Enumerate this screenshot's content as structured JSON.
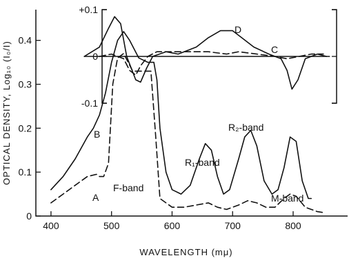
{
  "chart_data": [
    {
      "type": "line",
      "xlabel": "WAVELENGTH (mμ)",
      "ylabel": "OPTICAL DENSITY, Log₁₀ (I₀/I)",
      "xlim": [
        375,
        890
      ],
      "ylim": [
        0,
        0.47
      ],
      "x_ticks": [
        "400",
        "500",
        "600",
        "700",
        "800"
      ],
      "y_ticks": [
        "0",
        "0.1",
        "0.2",
        "0.3",
        "0.4"
      ],
      "series": [
        {
          "label": "B",
          "style": "solid",
          "points": [
            [
              400,
              0.06
            ],
            [
              420,
              0.09
            ],
            [
              440,
              0.13
            ],
            [
              460,
              0.18
            ],
            [
              470,
              0.2
            ],
            [
              480,
              0.23
            ],
            [
              490,
              0.28
            ],
            [
              500,
              0.35
            ],
            [
              510,
              0.4
            ],
            [
              520,
              0.42
            ],
            [
              530,
              0.4
            ],
            [
              545,
              0.36
            ],
            [
              560,
              0.35
            ],
            [
              570,
              0.35
            ],
            [
              575,
              0.31
            ],
            [
              580,
              0.2
            ],
            [
              590,
              0.1
            ],
            [
              600,
              0.06
            ],
            [
              615,
              0.05
            ],
            [
              630,
              0.07
            ],
            [
              645,
              0.13
            ],
            [
              655,
              0.165
            ],
            [
              665,
              0.15
            ],
            [
              675,
              0.09
            ],
            [
              685,
              0.05
            ],
            [
              695,
              0.06
            ],
            [
              710,
              0.13
            ],
            [
              720,
              0.18
            ],
            [
              730,
              0.195
            ],
            [
              740,
              0.16
            ],
            [
              752,
              0.08
            ],
            [
              765,
              0.05
            ],
            [
              775,
              0.06
            ],
            [
              785,
              0.11
            ],
            [
              795,
              0.18
            ],
            [
              805,
              0.17
            ],
            [
              815,
              0.08
            ],
            [
              825,
              0.04
            ],
            [
              830,
              0.04
            ]
          ]
        },
        {
          "label": "A",
          "style": "dashed",
          "points": [
            [
              400,
              0.03
            ],
            [
              420,
              0.05
            ],
            [
              440,
              0.07
            ],
            [
              460,
              0.09
            ],
            [
              475,
              0.095
            ],
            [
              480,
              0.09
            ],
            [
              487,
              0.09
            ],
            [
              495,
              0.12
            ],
            [
              502,
              0.3
            ],
            [
              510,
              0.36
            ],
            [
              520,
              0.37
            ],
            [
              535,
              0.33
            ],
            [
              550,
              0.33
            ],
            [
              565,
              0.33
            ],
            [
              573,
              0.18
            ],
            [
              580,
              0.04
            ],
            [
              600,
              0.02
            ],
            [
              620,
              0.02
            ],
            [
              640,
              0.025
            ],
            [
              660,
              0.03
            ],
            [
              675,
              0.02
            ],
            [
              690,
              0.015
            ],
            [
              710,
              0.025
            ],
            [
              725,
              0.035
            ],
            [
              740,
              0.03
            ],
            [
              755,
              0.02
            ],
            [
              770,
              0.02
            ],
            [
              785,
              0.04
            ],
            [
              795,
              0.05
            ],
            [
              805,
              0.045
            ],
            [
              820,
              0.02
            ],
            [
              840,
              0.01
            ],
            [
              850,
              0.008
            ]
          ]
        }
      ],
      "annotations": {
        "B": "B",
        "A": "A",
        "f_band": "F-band",
        "r1_band": "R₁-band",
        "r2_band": "R₂-band",
        "m_band": "M-band"
      }
    },
    {
      "type": "line",
      "inset": true,
      "ylim": [
        -0.1,
        0.1
      ],
      "y_ticks": [
        "+0.1",
        "0",
        "-0.1"
      ],
      "series": [
        {
          "label": "D",
          "style": "solid",
          "points": [
            [
              455,
              0.0
            ],
            [
              480,
              0.02
            ],
            [
              495,
              0.06
            ],
            [
              505,
              0.085
            ],
            [
              515,
              0.07
            ],
            [
              525,
              0.0
            ],
            [
              540,
              -0.05
            ],
            [
              548,
              -0.055
            ],
            [
              558,
              -0.025
            ],
            [
              568,
              0.0
            ],
            [
              590,
              0.01
            ],
            [
              610,
              0.005
            ],
            [
              640,
              0.02
            ],
            [
              660,
              0.04
            ],
            [
              680,
              0.055
            ],
            [
              700,
              0.055
            ],
            [
              715,
              0.04
            ],
            [
              735,
              0.02
            ],
            [
              760,
              0.005
            ],
            [
              780,
              -0.005
            ],
            [
              790,
              -0.03
            ],
            [
              798,
              -0.07
            ],
            [
              808,
              -0.05
            ],
            [
              820,
              -0.005
            ],
            [
              840,
              0.005
            ],
            [
              855,
              0.0
            ]
          ]
        },
        {
          "label": "C",
          "style": "dashed",
          "points": [
            [
              480,
              0.0
            ],
            [
              500,
              0.005
            ],
            [
              520,
              -0.005
            ],
            [
              530,
              -0.03
            ],
            [
              540,
              -0.04
            ],
            [
              548,
              -0.02
            ],
            [
              560,
              0.0
            ],
            [
              575,
              0.01
            ],
            [
              590,
              0.01
            ],
            [
              630,
              0.01
            ],
            [
              660,
              0.01
            ],
            [
              690,
              0.005
            ],
            [
              710,
              0.01
            ],
            [
              740,
              0.005
            ],
            [
              770,
              0.0
            ],
            [
              790,
              -0.005
            ],
            [
              810,
              0.0
            ],
            [
              830,
              0.005
            ],
            [
              850,
              0.005
            ]
          ]
        },
        {
          "label": "baseline",
          "style": "solid",
          "points": [
            [
              455,
              0.0
            ],
            [
              860,
              0.0
            ]
          ]
        }
      ],
      "annotations": {
        "D": "D",
        "C": "C"
      }
    }
  ]
}
